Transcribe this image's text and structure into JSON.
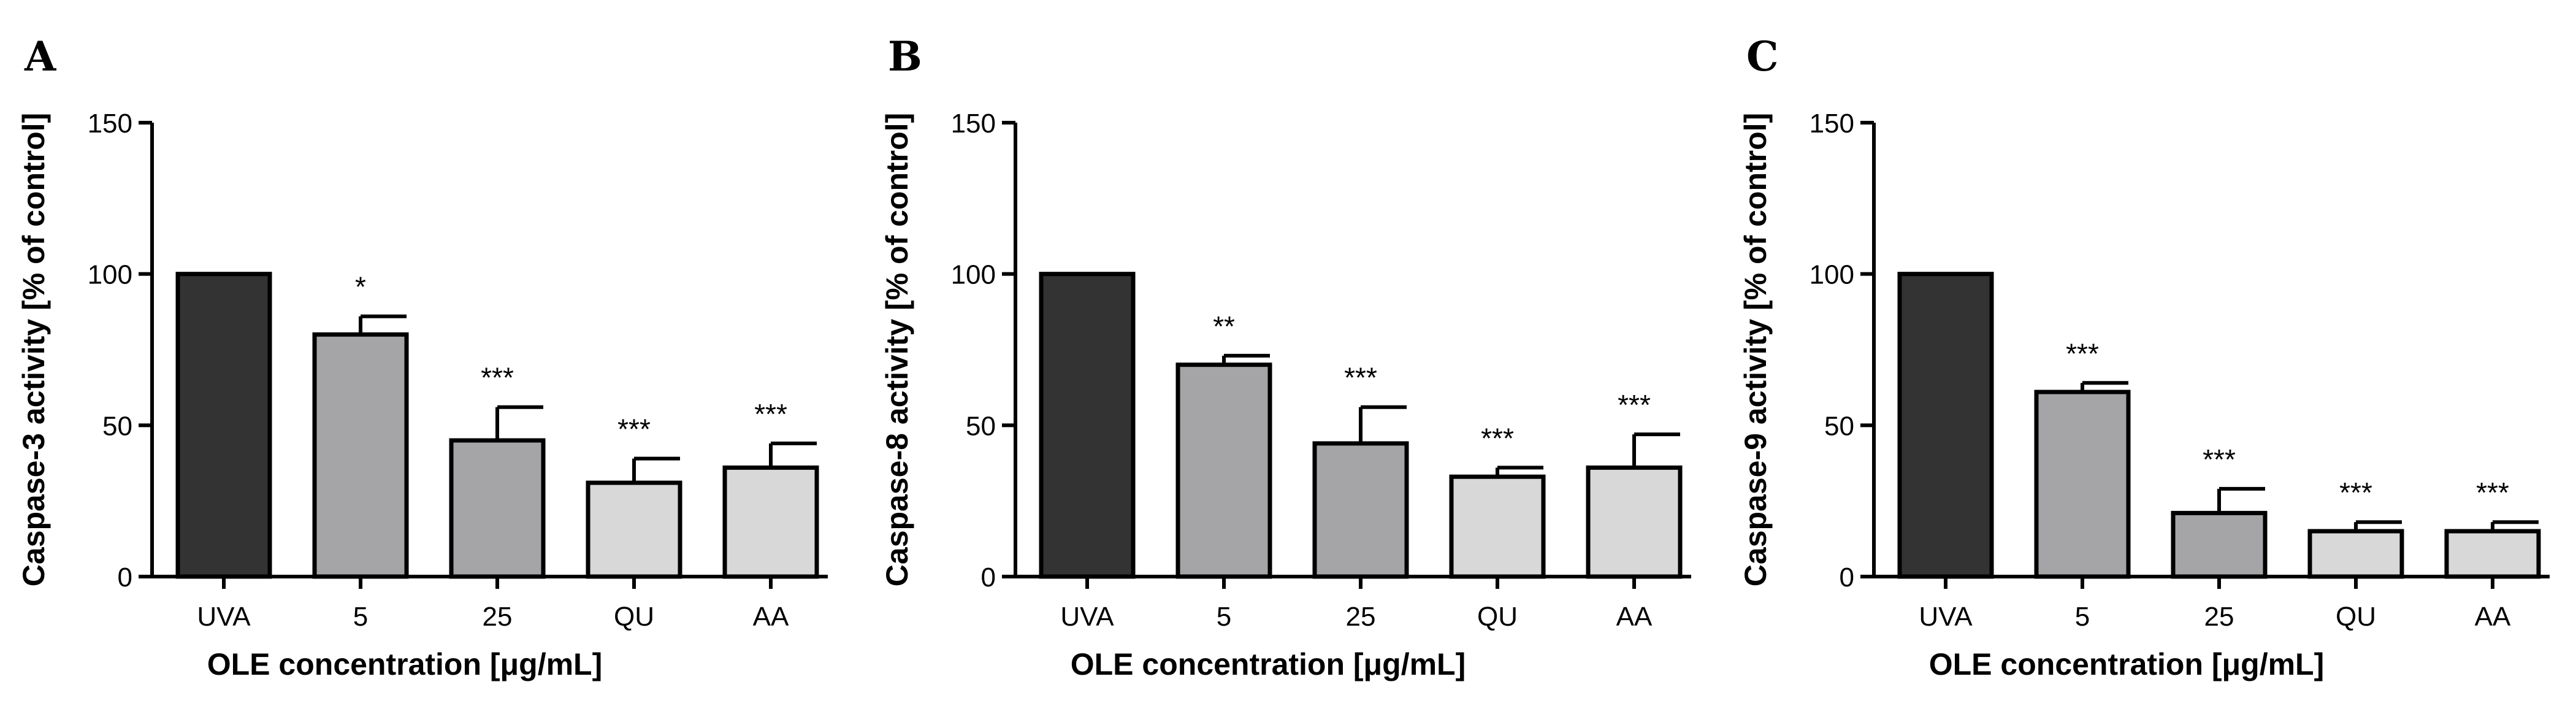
{
  "chart_data": [
    {
      "type": "bar",
      "panel": "A",
      "ylabel": "Caspase-3 activity [% of control]",
      "xlabel": "OLE concentration [μg/mL]",
      "categories": [
        "UVA",
        "5",
        "25",
        "QU",
        "AA"
      ],
      "values": [
        100,
        80,
        45,
        31,
        36
      ],
      "errors": [
        0,
        6,
        11,
        8,
        8
      ],
      "significance": [
        "",
        "*",
        "***",
        "***",
        "***"
      ],
      "bar_colors": [
        "#333333",
        "#a5a5a8",
        "#a5a5a8",
        "#d8d8d8",
        "#d8d8d8"
      ],
      "ylim": [
        0,
        150
      ],
      "yticks": [
        0,
        50,
        100,
        150
      ]
    },
    {
      "type": "bar",
      "panel": "B",
      "ylabel": "Caspase-8 activity [% of control]",
      "xlabel": "OLE concentration [μg/mL]",
      "categories": [
        "UVA",
        "5",
        "25",
        "QU",
        "AA"
      ],
      "values": [
        100,
        70,
        44,
        33,
        36
      ],
      "errors": [
        0,
        3,
        12,
        3,
        11
      ],
      "significance": [
        "",
        "**",
        "***",
        "***",
        "***"
      ],
      "bar_colors": [
        "#333333",
        "#a5a5a8",
        "#a5a5a8",
        "#d8d8d8",
        "#d8d8d8"
      ],
      "ylim": [
        0,
        150
      ],
      "yticks": [
        0,
        50,
        100,
        150
      ]
    },
    {
      "type": "bar",
      "panel": "C",
      "ylabel": "Caspase-9 activity [% of control]",
      "xlabel": "OLE concentration [μg/mL]",
      "categories": [
        "UVA",
        "5",
        "25",
        "QU",
        "AA"
      ],
      "values": [
        100,
        61,
        21,
        15,
        15
      ],
      "errors": [
        0,
        3,
        8,
        3,
        3
      ],
      "significance": [
        "",
        "***",
        "***",
        "***",
        "***"
      ],
      "bar_colors": [
        "#333333",
        "#a5a5a8",
        "#a5a5a8",
        "#d8d8d8",
        "#d8d8d8"
      ],
      "ylim": [
        0,
        150
      ],
      "yticks": [
        0,
        50,
        100,
        150
      ]
    }
  ]
}
